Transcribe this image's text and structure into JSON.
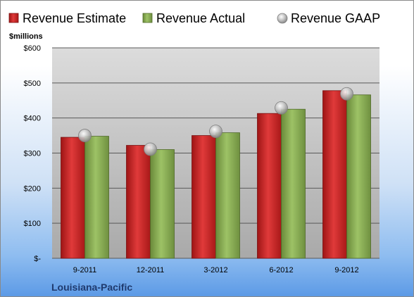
{
  "chart_data": {
    "type": "bar",
    "company": "Louisiana-Pacific",
    "ylabel": "$millions",
    "categories": [
      "9-2011",
      "12-2011",
      "3-2012",
      "6-2012",
      "9-2012"
    ],
    "series": [
      {
        "name": "Revenue Estimate",
        "kind": "bar",
        "color": "#d42a2a",
        "values": [
          345,
          322,
          350,
          413,
          478
        ]
      },
      {
        "name": "Revenue Actual",
        "kind": "bar",
        "color": "#8db255",
        "values": [
          348,
          310,
          358,
          425,
          466
        ]
      },
      {
        "name": "Revenue GAAP",
        "kind": "marker",
        "color": "#bfbfbf",
        "values": [
          350,
          311,
          362,
          429,
          469
        ]
      }
    ],
    "ylim": [
      0,
      600
    ],
    "yticks": [
      0,
      100,
      200,
      300,
      400,
      500,
      600
    ],
    "ytick_labels": [
      "$-",
      "$100",
      "$200",
      "$300",
      "$400",
      "$500",
      "$600"
    ],
    "grid": true,
    "legend_position": "top"
  }
}
